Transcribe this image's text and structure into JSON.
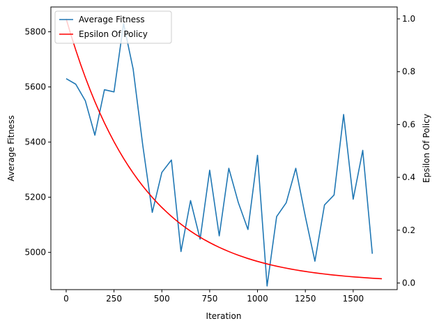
{
  "chart_data": {
    "type": "line",
    "title": "",
    "xlabel": "Iteration",
    "ylabel": "Average Fitness",
    "y2label": "Epsilon Of Policy",
    "xlim": [
      -80,
      1730
    ],
    "ylim": [
      4865,
      5890
    ],
    "y2lim": [
      -0.025,
      1.045
    ],
    "x_ticks": [
      0,
      250,
      500,
      750,
      1000,
      1250,
      1500
    ],
    "x_tick_labels": [
      "0",
      "250",
      "500",
      "750",
      "1000",
      "1250",
      "1500"
    ],
    "y_ticks": [
      5000,
      5200,
      5400,
      5600,
      5800
    ],
    "y_tick_labels": [
      "5000",
      "5200",
      "5400",
      "5600",
      "5800"
    ],
    "y2_ticks": [
      0.0,
      0.2,
      0.4,
      0.6,
      0.8,
      1.0
    ],
    "y2_tick_labels": [
      "0.0",
      "0.2",
      "0.4",
      "0.6",
      "0.8",
      "1.0"
    ],
    "grid": false,
    "legend_position": "top-left",
    "series": [
      {
        "name": "Average Fitness",
        "axis": "left",
        "color": "#1f77b4",
        "x": [
          0,
          50,
          100,
          150,
          200,
          250,
          300,
          350,
          400,
          450,
          500,
          550,
          600,
          650,
          700,
          750,
          800,
          850,
          900,
          950,
          1000,
          1050,
          1100,
          1150,
          1200,
          1250,
          1300,
          1350,
          1400,
          1450,
          1500,
          1550,
          1600
        ],
        "y": [
          5630,
          5610,
          5550,
          5425,
          5590,
          5582,
          5830,
          5665,
          5390,
          5145,
          5290,
          5335,
          5003,
          5188,
          5048,
          5298,
          5060,
          5305,
          5180,
          5083,
          5352,
          4878,
          5130,
          5180,
          5305,
          5130,
          4968,
          5172,
          5208,
          5500,
          5193,
          5370,
          4995
        ]
      },
      {
        "name": "Epsilon Of Policy",
        "axis": "right",
        "color": "#ff0000",
        "function": "exp_decay",
        "x_start": 0,
        "x_end": 1650,
        "y_start": 1.0,
        "rate_per_iteration": 0.9975,
        "samples": 67
      }
    ]
  }
}
